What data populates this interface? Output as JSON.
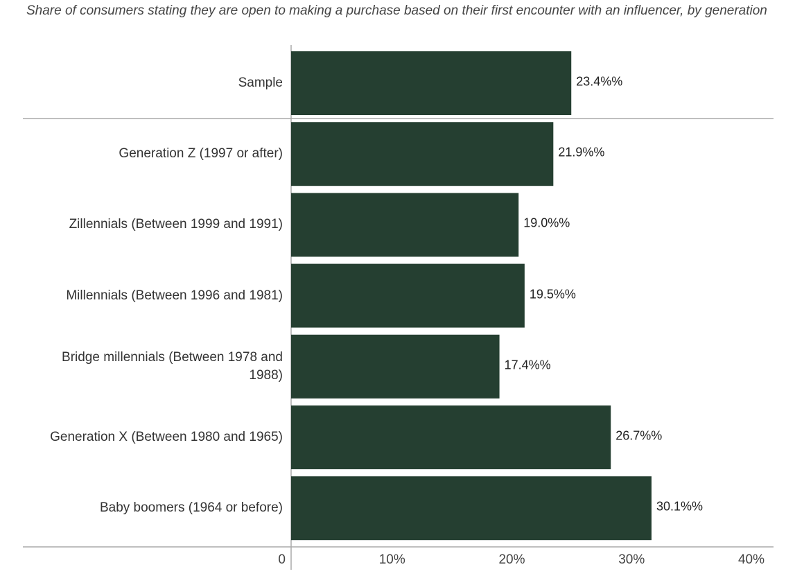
{
  "chart_data": {
    "type": "bar",
    "orientation": "horizontal",
    "title": "Share of consumers stating they are open to making a purchase based on their first encounter with an influencer, by generation",
    "categories": [
      "Sample",
      "Generation Z (1997 or after)",
      "Zillennials (Between 1999 and 1991)",
      "Millennials (Between 1996 and 1981)",
      "Bridge millennials (Between 1978 and 1988)",
      "Generation X (Between 1980 and 1965)",
      "Baby boomers (1964 or before)"
    ],
    "values": [
      23.4,
      21.9,
      19.0,
      19.5,
      17.4,
      26.7,
      30.1
    ],
    "value_labels": [
      "23.4%%",
      "21.9%%",
      "19.0%%",
      "19.5%%",
      "17.4%%",
      "26.7%%",
      "30.1%%"
    ],
    "color": "#253f31",
    "xlim": [
      0,
      40
    ],
    "xticks": [
      0,
      {
        "value": 10,
        "label": "10%"
      },
      {
        "value": 20,
        "label": "20%"
      },
      {
        "value": 30,
        "label": "30%"
      },
      {
        "value": 40,
        "label": "40%"
      }
    ]
  }
}
